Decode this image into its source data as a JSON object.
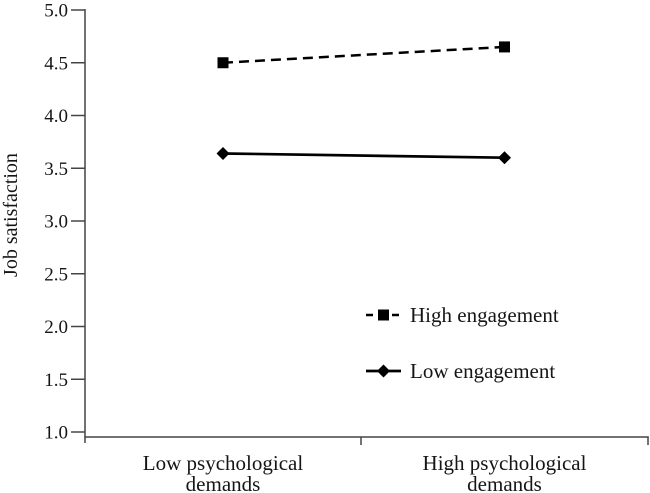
{
  "chart_data": {
    "type": "line",
    "title": "",
    "xlabel": "",
    "ylabel": "Job satisfaction",
    "categories": [
      "Low psychological demands",
      "High psychological demands"
    ],
    "category_lines": [
      [
        "Low psychological",
        "demands"
      ],
      [
        "High psychological",
        "demands"
      ]
    ],
    "series": [
      {
        "name": "High engagement",
        "values": [
          4.5,
          4.65
        ],
        "line_style": "dashed",
        "marker": "square"
      },
      {
        "name": "Low engagement",
        "values": [
          3.64,
          3.6
        ],
        "line_style": "solid",
        "marker": "diamond"
      }
    ],
    "ylim": [
      1.0,
      5.0
    ],
    "yticks": [
      1.0,
      1.5,
      2.0,
      2.5,
      3.0,
      3.5,
      4.0,
      4.5,
      5.0
    ],
    "ytick_labels": [
      "1.0",
      "1.5",
      "2.0",
      "2.5",
      "3.0",
      "3.5",
      "4.0",
      "4.5",
      "5.0"
    ],
    "grid": false,
    "legend": {
      "position": "inside-center-right",
      "items": [
        "High engagement",
        "Low engagement"
      ]
    },
    "colors": {
      "line": "#000000",
      "axis": "#454545",
      "text": "#151515",
      "background": "#ffffff"
    }
  }
}
